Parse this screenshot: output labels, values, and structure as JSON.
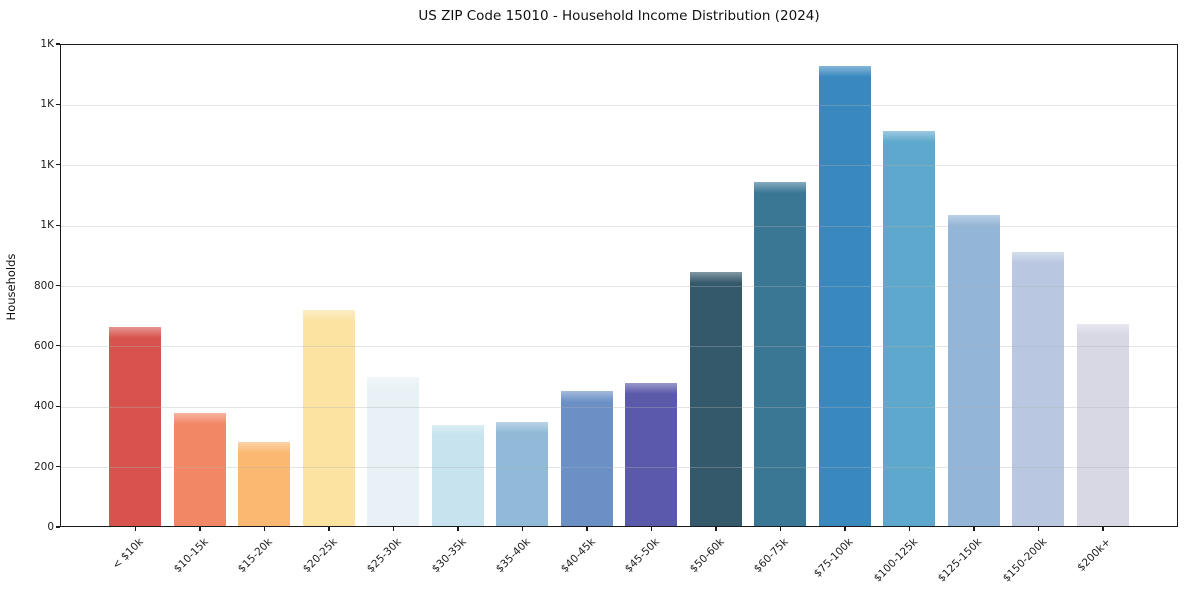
{
  "chart_data": {
    "type": "bar",
    "title": "US ZIP Code 15010 - Household Income Distribution (2024)",
    "xlabel": "",
    "ylabel": "Households",
    "categories": [
      "< $10k",
      "$10-15k",
      "$15-20k",
      "$20-25k",
      "$25-30k",
      "$30-35k",
      "$35-40k",
      "$40-45k",
      "$45-50k",
      "$50-60k",
      "$60-75k",
      "$75-100k",
      "$100-125k",
      "$125-150k",
      "$150-200k",
      "$200k+"
    ],
    "values": [
      658,
      376,
      279,
      716,
      494,
      333,
      343,
      448,
      475,
      843,
      1141,
      1523,
      1310,
      1031,
      909,
      670
    ],
    "bar_colors": [
      "#d9534e",
      "#f28766",
      "#fab871",
      "#fce3a2",
      "#e8f2f6",
      "#c6e3ee",
      "#90bad7",
      "#6a90c6",
      "#5a59aa",
      "#34596b",
      "#3a7795",
      "#3989bf",
      "#5fa8cd",
      "#93b5d7",
      "#b9c8e0",
      "#d8d8e4"
    ],
    "ylim": [
      0,
      1600
    ],
    "yticks": [
      {
        "v": 0,
        "label": "0"
      },
      {
        "v": 200,
        "label": "200"
      },
      {
        "v": 400,
        "label": "400"
      },
      {
        "v": 600,
        "label": "600"
      },
      {
        "v": 800,
        "label": "800"
      },
      {
        "v": 1000,
        "label": "1K"
      },
      {
        "v": 1200,
        "label": "1K"
      },
      {
        "v": 1400,
        "label": "1K"
      },
      {
        "v": 1600,
        "label": "1K"
      }
    ],
    "grid": true,
    "legend": false,
    "background_color": "#ffffff",
    "axis_color": "#1a1a1a"
  }
}
